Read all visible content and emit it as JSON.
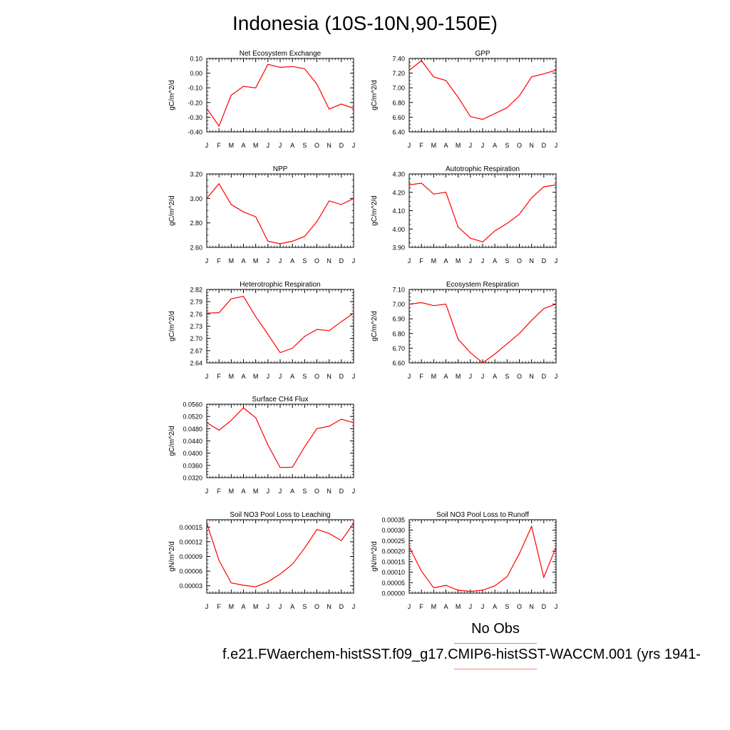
{
  "title": "Indonesia (10S-10N,90-150E)",
  "legend": {
    "obs_label": "No Obs",
    "case_label": "f.e21.FWaerchem-histSST.f09_g17.CMIP6-histSST-WACCM.001 (yrs 1941-"
  },
  "colors": {
    "series": "#ff0000",
    "obs_line": "#8c8cff",
    "case_line": "#ff8080"
  },
  "months": [
    "J",
    "F",
    "M",
    "A",
    "M",
    "J",
    "J",
    "A",
    "S",
    "O",
    "N",
    "D",
    "J"
  ],
  "chart_data": [
    {
      "type": "line",
      "title": "Net Ecosystem Exchange",
      "ylabel": "gC/m^2/d",
      "ylim": [
        -0.4,
        0.1
      ],
      "yticks": [
        "-0.40",
        "-0.30",
        "-0.20",
        "-0.10",
        "0.00",
        "0.10"
      ],
      "values": [
        -0.24,
        -0.36,
        -0.15,
        -0.09,
        -0.1,
        0.06,
        0.04,
        0.045,
        0.03,
        -0.075,
        -0.245,
        -0.21,
        -0.24
      ]
    },
    {
      "type": "line",
      "title": "GPP",
      "ylabel": "gC/m^2/d",
      "ylim": [
        6.4,
        7.4
      ],
      "yticks": [
        "6.40",
        "6.60",
        "6.80",
        "7.00",
        "7.20",
        "7.40"
      ],
      "values": [
        7.24,
        7.37,
        7.15,
        7.1,
        6.87,
        6.61,
        6.57,
        6.65,
        6.73,
        6.89,
        7.15,
        7.19,
        7.24
      ]
    },
    {
      "type": "line",
      "title": "NPP",
      "ylabel": "gC/m^2/d",
      "ylim": [
        2.6,
        3.2
      ],
      "yticks": [
        "2.60",
        "2.80",
        "3.00",
        "3.20"
      ],
      "values": [
        3.0,
        3.12,
        2.95,
        2.89,
        2.85,
        2.65,
        2.63,
        2.65,
        2.69,
        2.81,
        2.98,
        2.95,
        3.0
      ]
    },
    {
      "type": "line",
      "title": "Autotrophic Respiration",
      "ylabel": "gC/m^2/d",
      "ylim": [
        3.9,
        4.3
      ],
      "yticks": [
        "3.90",
        "4.00",
        "4.10",
        "4.20",
        "4.30"
      ],
      "values": [
        4.24,
        4.25,
        4.19,
        4.2,
        4.01,
        3.95,
        3.93,
        3.99,
        4.03,
        4.08,
        4.17,
        4.23,
        4.24
      ]
    },
    {
      "type": "line",
      "title": "Heterotrophic Respiration",
      "ylabel": "gC/m^2/d",
      "ylim": [
        2.64,
        2.82
      ],
      "yticks": [
        "2.64",
        "2.67",
        "2.70",
        "2.73",
        "2.76",
        "2.79",
        "2.82"
      ],
      "values": [
        2.762,
        2.763,
        2.797,
        2.803,
        2.753,
        2.71,
        2.665,
        2.676,
        2.705,
        2.722,
        2.719,
        2.741,
        2.762
      ]
    },
    {
      "type": "line",
      "title": "Ecosystem Respiration",
      "ylabel": "gC/m^2/d",
      "ylim": [
        6.6,
        7.1
      ],
      "yticks": [
        "6.60",
        "6.70",
        "6.80",
        "6.90",
        "7.00",
        "7.10"
      ],
      "values": [
        7.0,
        7.01,
        6.99,
        7.0,
        6.76,
        6.67,
        6.6,
        6.66,
        6.73,
        6.8,
        6.89,
        6.97,
        7.0
      ]
    },
    {
      "type": "line",
      "title": "Surface CH4 Flux",
      "ylabel": "gC/m^2/d",
      "ylim": [
        0.032,
        0.056
      ],
      "yticks": [
        "0.0320",
        "0.0360",
        "0.0400",
        "0.0440",
        "0.0480",
        "0.0520",
        "0.0560"
      ],
      "values": [
        0.05,
        0.0475,
        0.0507,
        0.0548,
        0.0516,
        0.0427,
        0.0353,
        0.0354,
        0.0421,
        0.048,
        0.0488,
        0.0511,
        0.05
      ]
    },
    {
      "type": "line",
      "title": "Soil NO3 Pool Loss to Leaching",
      "ylabel": "gN/m^2/d",
      "ylim": [
        1.5e-05,
        0.000165
      ],
      "yticks": [
        "0.00003",
        "0.00006",
        "0.00009",
        "0.00012",
        "0.00015"
      ],
      "values": [
        0.000158,
        8.2e-05,
        3.6e-05,
        3.1e-05,
        2.8e-05,
        3.8e-05,
        5.4e-05,
        7.4e-05,
        0.000107,
        0.000145,
        0.000137,
        0.000122,
        0.000158
      ]
    },
    {
      "type": "line",
      "title": "Soil NO3 Pool Loss to Runoff",
      "ylabel": "gN/m^2/d",
      "ylim": [
        0,
        0.00035
      ],
      "yticks": [
        "0.00000",
        "0.00005",
        "0.00010",
        "0.00015",
        "0.00020",
        "0.00025",
        "0.00030",
        "0.00035"
      ],
      "values": [
        0.00022,
        0.000105,
        2.5e-05,
        3.7e-05,
        1.4e-05,
        8e-06,
        1.4e-05,
        3.5e-05,
        7.8e-05,
        0.000188,
        0.000318,
        7.5e-05,
        0.00022
      ]
    }
  ]
}
